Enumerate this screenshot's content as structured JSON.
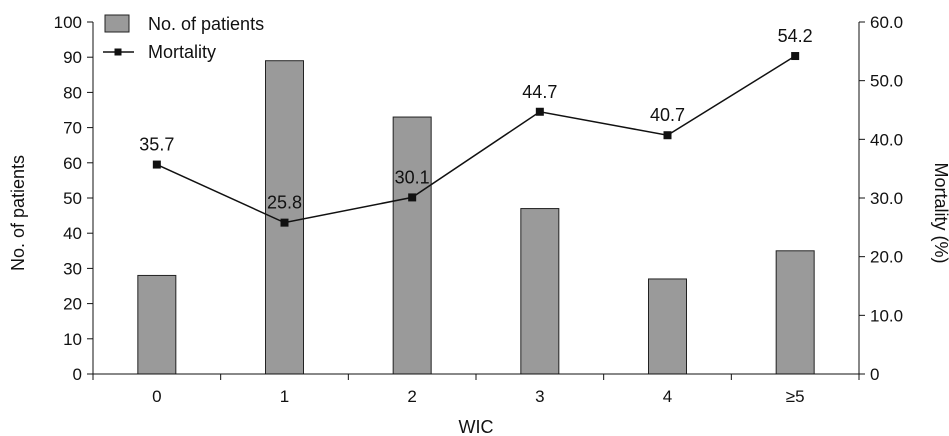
{
  "chart_data": {
    "type": "bar+line",
    "categories": [
      "0",
      "1",
      "2",
      "3",
      "4",
      "≥5"
    ],
    "series": [
      {
        "name": "No. of patients",
        "kind": "bar",
        "axis": "left",
        "values": [
          28,
          89,
          73,
          47,
          27,
          35
        ]
      },
      {
        "name": "Mortality",
        "kind": "line",
        "axis": "right",
        "values": [
          35.7,
          25.8,
          30.1,
          44.7,
          40.7,
          54.2
        ]
      }
    ],
    "xlabel": "WIC",
    "ylabel_left": "No. of patients",
    "ylabel_right": "Mortality (%)",
    "ylim_left": [
      0,
      100
    ],
    "ylim_right": [
      0,
      60
    ],
    "yticks_left": [
      "0",
      "10",
      "20",
      "30",
      "40",
      "50",
      "60",
      "70",
      "80",
      "90",
      "100"
    ],
    "yticks_right": [
      "0",
      "10.0",
      "20.0",
      "30.0",
      "40.0",
      "50.0",
      "60.0"
    ],
    "data_labels": [
      "35.7",
      "25.8",
      "30.1",
      "44.7",
      "40.7",
      "54.2"
    ],
    "grid": false,
    "legend_position": "top-left",
    "colors": {
      "bar_fill": "#9a9a9a",
      "bar_stroke": "#222222",
      "line": "#111111",
      "marker": "#111111"
    }
  }
}
